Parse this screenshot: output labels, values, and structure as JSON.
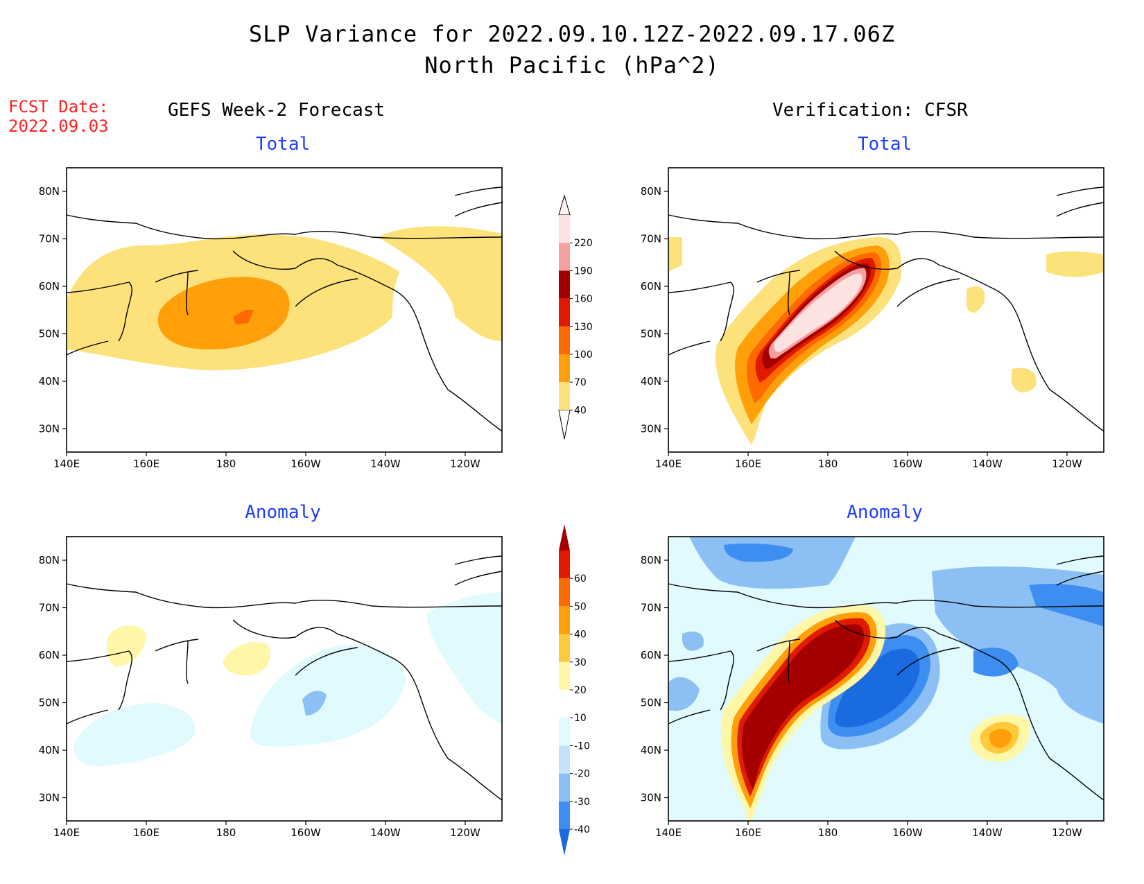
{
  "title": {
    "line1": "SLP Variance for 2022.09.10.12Z-2022.09.17.06Z",
    "line2": "North Pacific (hPa^2)"
  },
  "forecast_date": {
    "label": "FCST Date:",
    "value": "2022.09.03"
  },
  "columns": {
    "left": "GEFS Week-2 Forecast",
    "right": "Verification: CFSR"
  },
  "panels": [
    {
      "id": "gefs-total",
      "title": "Total"
    },
    {
      "id": "cfsr-total",
      "title": "Total"
    },
    {
      "id": "gefs-anomaly",
      "title": "Anomaly"
    },
    {
      "id": "cfsr-anomaly",
      "title": "Anomaly"
    }
  ],
  "axes": {
    "lon_labels": [
      "140E",
      "160E",
      "180",
      "160W",
      "140W",
      "120W"
    ],
    "lat_labels": [
      "80N",
      "70N",
      "60N",
      "50N",
      "40N",
      "30N"
    ]
  },
  "colorbars": {
    "total": {
      "labels": [
        "40",
        "70",
        "100",
        "130",
        "160",
        "190",
        "220"
      ],
      "colors": [
        "#fde17a",
        "#ff9f0a",
        "#ff6a00",
        "#e01a00",
        "#a50000",
        "#f4a0a0",
        "#fde2e2"
      ]
    },
    "anomaly": {
      "labels": [
        "-40",
        "-30",
        "-20",
        "-10",
        "10",
        "20",
        "30",
        "40",
        "50",
        "60"
      ],
      "colors": [
        "#1a6ae0",
        "#3d8ef0",
        "#8cc0f5",
        "#c4e3fb",
        "#e0fafe",
        "#ffffff",
        "#fff7a8",
        "#ffc93c",
        "#ff9f0a",
        "#ff6a00",
        "#e01a00",
        "#a50000"
      ]
    }
  },
  "map_colors": {
    "t40": "#fde17a",
    "t70": "#ff9f0a",
    "t100": "#ff6a00",
    "t130": "#e01a00",
    "t160": "#a50000",
    "t190": "#f4a0a0",
    "t220": "#fde2e2",
    "a_n40": "#1a6ae0",
    "a_n30": "#3d8ef0",
    "a_n20": "#8cc0f5",
    "a_n10": "#c4e3fb",
    "a_m10": "#e0fafe",
    "a_10": "#fff7a8",
    "a_20": "#ffc93c",
    "a_30": "#ff9f0a",
    "a_40": "#ff6a00",
    "a_50": "#e01a00",
    "a_60": "#a50000"
  }
}
